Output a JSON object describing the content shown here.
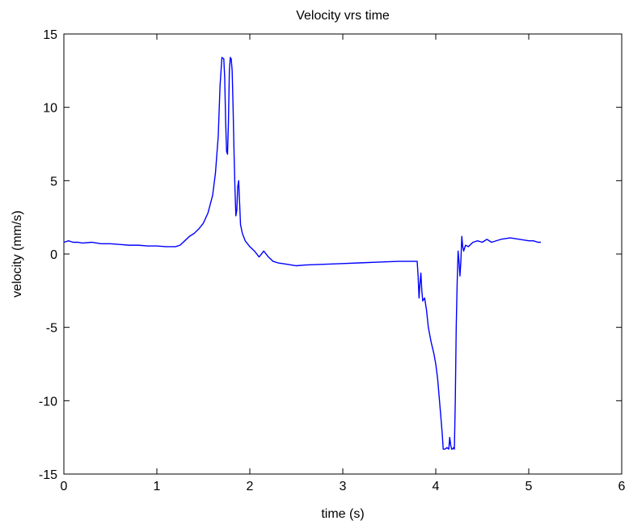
{
  "chart_data": {
    "type": "line",
    "title": "Velocity vrs time",
    "xlabel": "time (s)",
    "ylabel": "velocity (mm/s)",
    "xlim": [
      0,
      6
    ],
    "ylim": [
      -15,
      15
    ],
    "xticks": [
      0,
      1,
      2,
      3,
      4,
      5,
      6
    ],
    "yticks": [
      15,
      10,
      5,
      0,
      -5,
      -10,
      -15
    ],
    "grid": false,
    "legend": "none",
    "series": [
      {
        "color": "#0000ff",
        "x": [
          0.0,
          0.05,
          0.1,
          0.15,
          0.2,
          0.3,
          0.4,
          0.5,
          0.6,
          0.7,
          0.8,
          0.9,
          1.0,
          1.1,
          1.2,
          1.25,
          1.3,
          1.35,
          1.4,
          1.45,
          1.5,
          1.55,
          1.6,
          1.63,
          1.66,
          1.68,
          1.7,
          1.72,
          1.73,
          1.74,
          1.75,
          1.76,
          1.77,
          1.78,
          1.79,
          1.8,
          1.81,
          1.82,
          1.83,
          1.84,
          1.85,
          1.86,
          1.87,
          1.88,
          1.89,
          1.9,
          1.92,
          1.95,
          2.0,
          2.05,
          2.1,
          2.15,
          2.2,
          2.25,
          2.3,
          2.4,
          2.5,
          2.6,
          2.8,
          3.0,
          3.2,
          3.4,
          3.6,
          3.7,
          3.8,
          3.81,
          3.82,
          3.83,
          3.84,
          3.85,
          3.86,
          3.88,
          3.9,
          3.92,
          3.95,
          3.98,
          4.0,
          4.02,
          4.04,
          4.06,
          4.07,
          4.08,
          4.09,
          4.1,
          4.12,
          4.14,
          4.15,
          4.16,
          4.17,
          4.18,
          4.19,
          4.2,
          4.21,
          4.22,
          4.23,
          4.24,
          4.25,
          4.26,
          4.27,
          4.28,
          4.29,
          4.3,
          4.32,
          4.35,
          4.4,
          4.45,
          4.5,
          4.55,
          4.6,
          4.7,
          4.8,
          4.9,
          5.0,
          5.05,
          5.1,
          5.13
        ],
        "y": [
          0.8,
          0.9,
          0.8,
          0.8,
          0.75,
          0.8,
          0.7,
          0.7,
          0.65,
          0.6,
          0.6,
          0.55,
          0.55,
          0.5,
          0.5,
          0.6,
          0.9,
          1.2,
          1.4,
          1.7,
          2.1,
          2.8,
          4.0,
          5.5,
          8.0,
          11.5,
          13.4,
          13.3,
          12.0,
          9.0,
          7.0,
          6.8,
          9.0,
          12.5,
          13.4,
          13.3,
          12.5,
          10.0,
          7.0,
          4.5,
          2.6,
          3.0,
          4.6,
          5.0,
          3.5,
          2.0,
          1.4,
          0.9,
          0.5,
          0.2,
          -0.2,
          0.2,
          -0.2,
          -0.5,
          -0.6,
          -0.7,
          -0.8,
          -0.75,
          -0.7,
          -0.65,
          -0.6,
          -0.55,
          -0.5,
          -0.5,
          -0.5,
          -1.5,
          -3.0,
          -2.0,
          -1.3,
          -2.5,
          -3.2,
          -3.0,
          -3.8,
          -5.0,
          -6.0,
          -6.8,
          -7.5,
          -8.5,
          -10.0,
          -11.5,
          -12.3,
          -13.3,
          -13.3,
          -13.3,
          -13.2,
          -13.3,
          -12.5,
          -13.0,
          -13.3,
          -13.3,
          -13.2,
          -13.3,
          -10.0,
          -5.0,
          -2.0,
          0.2,
          -0.5,
          -1.5,
          -0.5,
          1.2,
          0.5,
          0.2,
          0.6,
          0.5,
          0.8,
          0.9,
          0.8,
          1.0,
          0.8,
          1.0,
          1.1,
          1.0,
          0.9,
          0.9,
          0.8,
          0.8
        ]
      }
    ]
  }
}
